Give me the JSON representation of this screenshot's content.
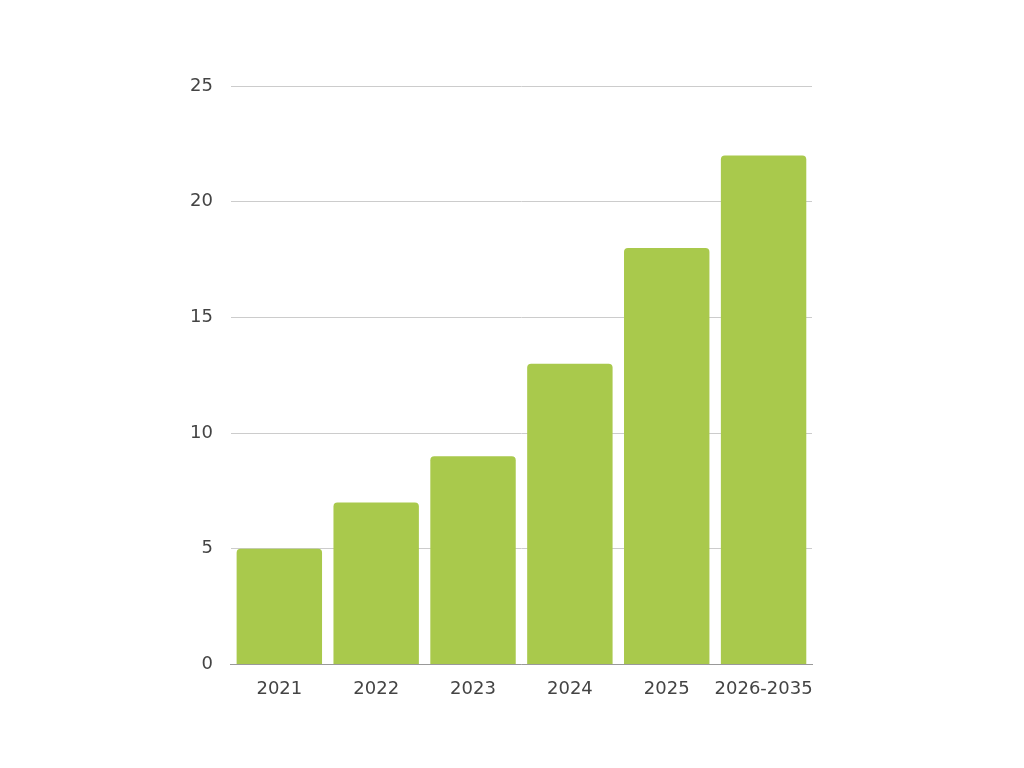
{
  "chart_data": {
    "type": "bar",
    "categories": [
      "2021",
      "2022",
      "2023",
      "2024",
      "2025",
      "2026-2035"
    ],
    "values": [
      5,
      7,
      9,
      13,
      18,
      22
    ],
    "color": "#a9c94c",
    "ylim": [
      0,
      25
    ],
    "yticks": [
      0,
      5,
      10,
      15,
      20,
      25
    ],
    "grid": true
  }
}
